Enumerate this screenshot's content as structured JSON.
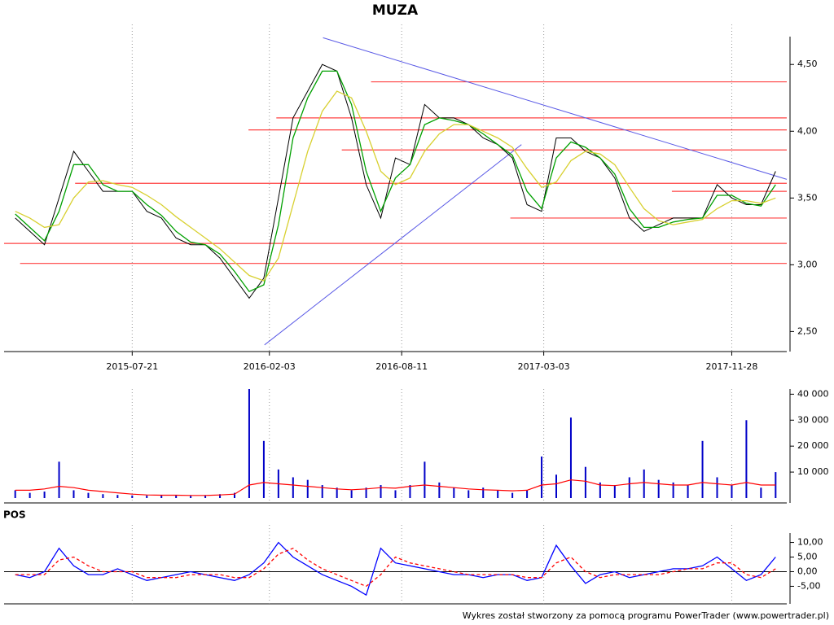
{
  "chart_data": [
    {
      "type": "line",
      "title": "MUZA",
      "x": [
        "2015-02-03",
        "2015-02-24",
        "2015-03-17",
        "2015-04-07",
        "2015-04-28",
        "2015-05-19",
        "2015-06-09",
        "2015-06-30",
        "2015-07-21",
        "2015-08-11",
        "2015-09-01",
        "2015-09-22",
        "2015-10-13",
        "2015-11-03",
        "2015-11-24",
        "2015-12-15",
        "2016-01-05",
        "2016-01-26",
        "2016-02-16",
        "2016-03-08",
        "2016-03-29",
        "2016-04-19",
        "2016-05-10",
        "2016-05-31",
        "2016-06-21",
        "2016-07-12",
        "2016-08-02",
        "2016-08-23",
        "2016-09-13",
        "2016-10-04",
        "2016-10-25",
        "2016-11-15",
        "2016-12-06",
        "2016-12-27",
        "2017-01-17",
        "2017-02-07",
        "2017-02-28",
        "2017-03-21",
        "2017-04-11",
        "2017-05-02",
        "2017-05-23",
        "2017-06-13",
        "2017-07-04",
        "2017-07-25",
        "2017-08-15",
        "2017-09-05",
        "2017-09-26",
        "2017-10-17",
        "2017-11-07",
        "2017-11-28",
        "2017-12-19",
        "2018-01-09",
        "2018-01-30"
      ],
      "series": [
        {
          "color": "#000000",
          "values": [
            3.35,
            3.25,
            3.15,
            3.5,
            3.85,
            3.7,
            3.55,
            3.55,
            3.55,
            3.4,
            3.35,
            3.2,
            3.15,
            3.15,
            3.05,
            2.9,
            2.75,
            2.9,
            3.5,
            4.1,
            4.3,
            4.5,
            4.45,
            4.1,
            3.6,
            3.35,
            3.8,
            3.75,
            4.2,
            4.1,
            4.1,
            4.05,
            3.95,
            3.9,
            3.8,
            3.45,
            3.4,
            3.95,
            3.95,
            3.85,
            3.8,
            3.65,
            3.35,
            3.25,
            3.3,
            3.35,
            3.35,
            3.35,
            3.6,
            3.5,
            3.45,
            3.45,
            3.7
          ]
        },
        {
          "color": "#00a000",
          "values": [
            3.38,
            3.28,
            3.18,
            3.4,
            3.75,
            3.75,
            3.6,
            3.55,
            3.55,
            3.45,
            3.37,
            3.25,
            3.17,
            3.15,
            3.08,
            2.95,
            2.8,
            2.85,
            3.3,
            3.95,
            4.25,
            4.45,
            4.45,
            4.2,
            3.7,
            3.4,
            3.65,
            3.75,
            4.05,
            4.1,
            4.08,
            4.05,
            3.98,
            3.9,
            3.82,
            3.55,
            3.42,
            3.8,
            3.92,
            3.88,
            3.8,
            3.68,
            3.42,
            3.28,
            3.28,
            3.32,
            3.34,
            3.35,
            3.52,
            3.52,
            3.46,
            3.44,
            3.6
          ]
        },
        {
          "color": "#d8d030",
          "values": [
            3.4,
            3.35,
            3.28,
            3.3,
            3.5,
            3.62,
            3.63,
            3.6,
            3.58,
            3.52,
            3.45,
            3.36,
            3.28,
            3.2,
            3.12,
            3.02,
            2.92,
            2.88,
            3.05,
            3.45,
            3.85,
            4.15,
            4.3,
            4.25,
            4.0,
            3.7,
            3.6,
            3.65,
            3.85,
            3.98,
            4.05,
            4.05,
            4.0,
            3.95,
            3.88,
            3.72,
            3.58,
            3.62,
            3.78,
            3.85,
            3.83,
            3.75,
            3.58,
            3.42,
            3.33,
            3.3,
            3.32,
            3.34,
            3.42,
            3.48,
            3.48,
            3.46,
            3.5
          ]
        }
      ],
      "xlim": [
        "2015-01-18",
        "2018-02-15"
      ],
      "xticks": [
        "2015-07-21",
        "2016-02-03",
        "2016-08-11",
        "2017-03-03",
        "2017-11-28"
      ],
      "ylim": [
        2.35,
        4.8
      ],
      "yticks": [
        {
          "value": 2.5,
          "label": "2,50"
        },
        {
          "value": 3,
          "label": "3,00"
        },
        {
          "value": 3.5,
          "label": "3,50"
        },
        {
          "value": 4,
          "label": "4,00"
        },
        {
          "value": 4.5,
          "label": "4,50"
        }
      ],
      "grid": true,
      "levels": {
        "color": "#ff4040",
        "items": [
          {
            "y": 4.37,
            "x": [
              "2016-06-28",
              "2018-02-15"
            ]
          },
          {
            "y": 4.1,
            "x": [
              "2016-02-13",
              "2018-02-15"
            ]
          },
          {
            "y": 4.01,
            "x": [
              "2016-01-04",
              "2018-02-15"
            ]
          },
          {
            "y": 3.86,
            "x": [
              "2016-05-17",
              "2018-02-15"
            ]
          },
          {
            "y": 3.61,
            "x": [
              "2015-04-30",
              "2018-02-15"
            ]
          },
          {
            "y": 3.55,
            "x": [
              "2017-09-03",
              "2018-02-15"
            ]
          },
          {
            "y": 3.35,
            "x": [
              "2017-01-14",
              "2018-02-15"
            ]
          },
          {
            "y": 3.16,
            "x": [
              "2015-01-18",
              "2018-02-15"
            ]
          },
          {
            "y": 3.01,
            "x": [
              "2015-02-10",
              "2018-02-15"
            ]
          }
        ]
      },
      "trendlines": {
        "color": "#5a5ae6",
        "items": [
          {
            "x": [
              "2016-04-20",
              "2018-02-15"
            ],
            "y": [
              4.7,
              3.64
            ]
          },
          {
            "x": [
              "2016-01-27",
              "2017-01-30"
            ],
            "y": [
              2.4,
              3.9
            ]
          }
        ]
      }
    },
    {
      "type": "bar",
      "series": [
        {
          "color": "#0000c8",
          "values": [
            3000,
            2000,
            2500,
            14000,
            3000,
            2000,
            1500,
            1200,
            1000,
            1000,
            1200,
            1000,
            900,
            1000,
            1500,
            2000,
            42000,
            22000,
            11000,
            8000,
            7000,
            5000,
            4000,
            3000,
            4000,
            5000,
            3000,
            5000,
            14000,
            6000,
            4000,
            3000,
            4000,
            3000,
            2000,
            3000,
            16000,
            9000,
            31000,
            12000,
            6000,
            5000,
            8000,
            11000,
            7000,
            6000,
            5000,
            22000,
            8000,
            5000,
            30000,
            4000,
            10000
          ]
        },
        {
          "color": "#ff0000",
          "values": [
            3000,
            3000,
            3500,
            4500,
            4000,
            3000,
            2500,
            2000,
            1500,
            1200,
            1100,
            1100,
            1000,
            1000,
            1200,
            1500,
            5000,
            6000,
            5500,
            5000,
            4500,
            4000,
            3500,
            3200,
            3500,
            4000,
            3800,
            4500,
            5000,
            4500,
            4000,
            3500,
            3200,
            3000,
            2800,
            3000,
            5000,
            5500,
            7000,
            6500,
            5000,
            4800,
            5500,
            6000,
            5500,
            5000,
            5000,
            6000,
            5500,
            5000,
            6000,
            5000,
            5000
          ]
        }
      ],
      "ylim": [
        0,
        42000
      ],
      "yticks": [
        {
          "value": 10000,
          "label": "10 000"
        },
        {
          "value": 20000,
          "label": "20 000"
        },
        {
          "value": 30000,
          "label": "30 000"
        },
        {
          "value": 40000,
          "label": "40 000"
        }
      ],
      "grid": true
    },
    {
      "type": "line",
      "title": "POS",
      "series": [
        {
          "color": "#0000ff",
          "values": [
            -1,
            -2,
            0,
            8,
            2,
            -1,
            -1,
            1,
            -1,
            -3,
            -2,
            -1,
            0,
            -1,
            -2,
            -3,
            -1,
            3,
            10,
            5,
            2,
            -1,
            -3,
            -5,
            -8,
            8,
            3,
            2,
            1,
            0,
            -1,
            -1,
            -2,
            -1,
            -1,
            -3,
            -2,
            9,
            2,
            -4,
            -1,
            0,
            -2,
            -1,
            0,
            1,
            1,
            2,
            5,
            1,
            -3,
            -1,
            5
          ]
        },
        {
          "color": "#ff0000",
          "dashed": true,
          "values": [
            -1,
            -1,
            -1,
            4,
            5,
            2,
            0,
            0,
            0,
            -2,
            -2,
            -2,
            -1,
            -1,
            -1,
            -2,
            -2,
            1,
            6,
            8,
            4,
            1,
            -1,
            -3,
            -5,
            -1,
            5,
            3,
            2,
            1,
            0,
            -1,
            -1,
            -1,
            -1,
            -2,
            -2,
            3,
            5,
            0,
            -2,
            -1,
            -1,
            -1,
            -1,
            0,
            1,
            1,
            3,
            3,
            -1,
            -2,
            1
          ]
        }
      ],
      "ylim": [
        -11,
        16
      ],
      "yticks": [
        {
          "value": -5,
          "label": "-5,00"
        },
        {
          "value": 0,
          "label": "0,00"
        },
        {
          "value": 5,
          "label": "5,00"
        },
        {
          "value": 10,
          "label": "10,00"
        }
      ],
      "grid": true
    }
  ],
  "footer": "Wykres został stworzony za pomocą programu PowerTrader (www.powertrader.pl)"
}
